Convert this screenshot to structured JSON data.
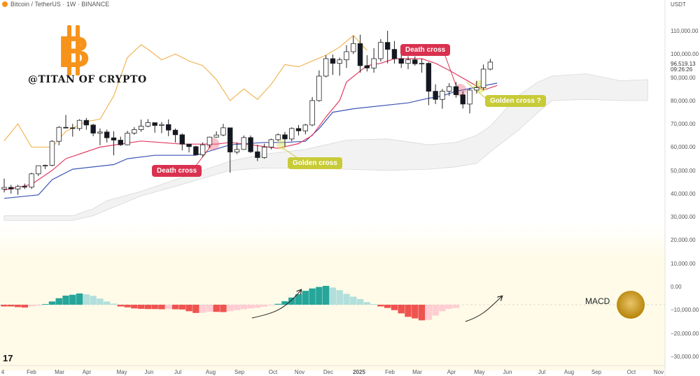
{
  "header": {
    "symbol": "Bitcoin / TetherUS · 1W · BINANCE",
    "currency": "USDT"
  },
  "brand": {
    "logo_letter": "B",
    "handle": "@TITAN OF CRYPTO"
  },
  "annotations": {
    "death_cross_1": "Death cross",
    "golden_cross_1": "Golden cross",
    "death_cross_2": "Death cross",
    "golden_cross_2": "Golden cross ?"
  },
  "macd_label": "MACD",
  "tv_logo": "17",
  "price_now": "96,519.13",
  "countdown": "09:26:26",
  "colors": {
    "bull": "#ffffff",
    "bear": "#131722",
    "tenkan": "#e23a62",
    "kijun": "#3d55b8",
    "chikou": "#f0b04a",
    "cloud": "#e7e7e7",
    "macd_pos_strong": "#26a69a",
    "macd_pos_weak": "#b2dfdb",
    "macd_neg_strong": "#ef5350",
    "macd_neg_weak": "#ffcdd2"
  },
  "chart_data": {
    "type": "candlestick",
    "price_axis_ticks": [
      "110,000.00",
      "100,000.00",
      "90,000.00",
      "80,000.00",
      "70,000.00",
      "60,000.00",
      "50,000.00",
      "40,000.00",
      "30,000.00",
      "20,000.00",
      "10,000.00",
      "0.00",
      "−10,000.00",
      "−20,000.00",
      "−30,000.00"
    ],
    "time_axis_ticks": [
      "4",
      "Feb",
      "Mar",
      "Apr",
      "May",
      "Jun",
      "Jul",
      "Aug",
      "Sep",
      "Oct",
      "Nov",
      "Dec",
      "2025",
      "Feb",
      "Mar",
      "Apr",
      "May",
      "Jun",
      "Jul",
      "Aug",
      "Sep",
      "Oct",
      "Nov"
    ],
    "candles": [
      {
        "o": 42000,
        "c": 42700,
        "h": 46500,
        "l": 40500
      },
      {
        "o": 42700,
        "c": 42000,
        "h": 43800,
        "l": 40000
      },
      {
        "o": 42000,
        "c": 43100,
        "h": 43800,
        "l": 39500
      },
      {
        "o": 43100,
        "c": 42800,
        "h": 44300,
        "l": 42000
      },
      {
        "o": 42800,
        "c": 48500,
        "h": 49000,
        "l": 42000
      },
      {
        "o": 48500,
        "c": 52000,
        "h": 52200,
        "l": 47600
      },
      {
        "o": 52000,
        "c": 52200,
        "h": 52500,
        "l": 50600
      },
      {
        "o": 52200,
        "c": 62500,
        "h": 63000,
        "l": 51800
      },
      {
        "o": 62500,
        "c": 68500,
        "h": 69000,
        "l": 60800
      },
      {
        "o": 68500,
        "c": 68300,
        "h": 73800,
        "l": 68000
      },
      {
        "o": 68300,
        "c": 68000,
        "h": 70000,
        "l": 64500
      },
      {
        "o": 68000,
        "c": 71500,
        "h": 72000,
        "l": 67000
      },
      {
        "o": 71500,
        "c": 69500,
        "h": 72500,
        "l": 67500
      },
      {
        "o": 69500,
        "c": 66000,
        "h": 70000,
        "l": 64700
      },
      {
        "o": 66000,
        "c": 66500,
        "h": 68000,
        "l": 60800
      },
      {
        "o": 66500,
        "c": 64000,
        "h": 67500,
        "l": 62000
      },
      {
        "o": 64000,
        "c": 63000,
        "h": 66800,
        "l": 56500
      },
      {
        "o": 63000,
        "c": 61000,
        "h": 64500,
        "l": 60500
      },
      {
        "o": 61000,
        "c": 66000,
        "h": 67000,
        "l": 60800
      },
      {
        "o": 66000,
        "c": 67500,
        "h": 68600,
        "l": 65300
      },
      {
        "o": 67500,
        "c": 69000,
        "h": 71800,
        "l": 66600
      },
      {
        "o": 69000,
        "c": 70500,
        "h": 72000,
        "l": 68500
      },
      {
        "o": 70500,
        "c": 69300,
        "h": 70600,
        "l": 66200
      },
      {
        "o": 69300,
        "c": 69700,
        "h": 70800,
        "l": 66000
      },
      {
        "o": 69700,
        "c": 67300,
        "h": 71900,
        "l": 64700
      },
      {
        "o": 67300,
        "c": 65300,
        "h": 68000,
        "l": 62000
      },
      {
        "o": 65300,
        "c": 61300,
        "h": 65900,
        "l": 58600
      },
      {
        "o": 61300,
        "c": 60200,
        "h": 61300,
        "l": 57700
      },
      {
        "o": 60200,
        "c": 56700,
        "h": 60600,
        "l": 56500
      },
      {
        "o": 56700,
        "c": 61000,
        "h": 62000,
        "l": 55700
      },
      {
        "o": 61000,
        "c": 64300,
        "h": 64500,
        "l": 59800
      },
      {
        "o": 64300,
        "c": 65200,
        "h": 66800,
        "l": 64000
      },
      {
        "o": 65200,
        "c": 68300,
        "h": 70000,
        "l": 64700
      },
      {
        "o": 68300,
        "c": 57900,
        "h": 68400,
        "l": 49000
      },
      {
        "o": 57900,
        "c": 59000,
        "h": 62000,
        "l": 57000
      },
      {
        "o": 59000,
        "c": 64100,
        "h": 65000,
        "l": 58800
      },
      {
        "o": 64100,
        "c": 58000,
        "h": 65000,
        "l": 57500
      },
      {
        "o": 58000,
        "c": 55500,
        "h": 61000,
        "l": 54000
      },
      {
        "o": 55500,
        "c": 60000,
        "h": 61500,
        "l": 55000
      },
      {
        "o": 60000,
        "c": 63200,
        "h": 63600,
        "l": 59000
      },
      {
        "o": 63200,
        "c": 65300,
        "h": 65900,
        "l": 62500
      },
      {
        "o": 65300,
        "c": 63500,
        "h": 66500,
        "l": 60000
      },
      {
        "o": 63500,
        "c": 68000,
        "h": 68500,
        "l": 62500
      },
      {
        "o": 68000,
        "c": 67000,
        "h": 69500,
        "l": 65000
      },
      {
        "o": 67000,
        "c": 69500,
        "h": 70000,
        "l": 65500
      },
      {
        "o": 69500,
        "c": 80000,
        "h": 81500,
        "l": 69000
      },
      {
        "o": 80000,
        "c": 90500,
        "h": 93000,
        "l": 79500
      },
      {
        "o": 90500,
        "c": 98000,
        "h": 99500,
        "l": 90000
      },
      {
        "o": 98000,
        "c": 96000,
        "h": 99800,
        "l": 91000
      },
      {
        "o": 96000,
        "c": 97500,
        "h": 98500,
        "l": 90700
      },
      {
        "o": 97500,
        "c": 101000,
        "h": 103800,
        "l": 94000
      },
      {
        "o": 101000,
        "c": 104500,
        "h": 107800,
        "l": 100000
      },
      {
        "o": 104500,
        "c": 95000,
        "h": 108300,
        "l": 92000
      },
      {
        "o": 95000,
        "c": 94000,
        "h": 99500,
        "l": 92500
      },
      {
        "o": 94000,
        "c": 98000,
        "h": 102500,
        "l": 92000
      },
      {
        "o": 98000,
        "c": 105000,
        "h": 106400,
        "l": 96800
      },
      {
        "o": 105000,
        "c": 102000,
        "h": 110000,
        "l": 96000
      },
      {
        "o": 102000,
        "c": 98000,
        "h": 105600,
        "l": 95900
      },
      {
        "o": 98000,
        "c": 96000,
        "h": 100000,
        "l": 94000
      },
      {
        "o": 96000,
        "c": 97500,
        "h": 99000,
        "l": 93500
      },
      {
        "o": 97500,
        "c": 95800,
        "h": 99000,
        "l": 95000
      },
      {
        "o": 95800,
        "c": 96000,
        "h": 98000,
        "l": 92000
      },
      {
        "o": 96000,
        "c": 84000,
        "h": 96500,
        "l": 78000
      },
      {
        "o": 84000,
        "c": 80500,
        "h": 87000,
        "l": 78500
      },
      {
        "o": 80500,
        "c": 84000,
        "h": 85000,
        "l": 76500
      },
      {
        "o": 84000,
        "c": 86000,
        "h": 87500,
        "l": 82000
      },
      {
        "o": 86000,
        "c": 82500,
        "h": 88000,
        "l": 81200
      },
      {
        "o": 82500,
        "c": 78500,
        "h": 84000,
        "l": 76600
      },
      {
        "o": 78500,
        "c": 84500,
        "h": 85500,
        "l": 74500
      },
      {
        "o": 84500,
        "c": 85500,
        "h": 88500,
        "l": 83000
      },
      {
        "o": 85500,
        "c": 93500,
        "h": 95500,
        "l": 84500
      },
      {
        "o": 93500,
        "c": 96519,
        "h": 97900,
        "l": 93000
      }
    ],
    "tenkan": [
      [
        0,
        41500
      ],
      [
        4,
        44000
      ],
      [
        7,
        50000
      ],
      [
        9,
        55000
      ],
      [
        14,
        60000
      ],
      [
        20,
        62600
      ],
      [
        26,
        61300
      ],
      [
        31,
        61300
      ],
      [
        33,
        62000
      ],
      [
        36,
        61000
      ],
      [
        40,
        59500
      ],
      [
        43,
        61500
      ],
      [
        45,
        65000
      ],
      [
        47,
        73000
      ],
      [
        49,
        80000
      ],
      [
        50,
        88000
      ],
      [
        53,
        95000
      ],
      [
        55,
        96000
      ],
      [
        57,
        98000
      ],
      [
        61,
        98000
      ],
      [
        63,
        96000
      ],
      [
        65,
        93000
      ],
      [
        68,
        88000
      ],
      [
        70,
        84500
      ],
      [
        72,
        86500
      ]
    ],
    "kijun": [
      [
        0,
        38000
      ],
      [
        5,
        39500
      ],
      [
        7,
        46000
      ],
      [
        10,
        50500
      ],
      [
        16,
        52500
      ],
      [
        18,
        55000
      ],
      [
        22,
        56500
      ],
      [
        28,
        56500
      ],
      [
        33,
        61000
      ],
      [
        38,
        62000
      ],
      [
        41,
        62000
      ],
      [
        44,
        62500
      ],
      [
        46,
        68000
      ],
      [
        48,
        75000
      ],
      [
        51,
        76500
      ],
      [
        59,
        79000
      ],
      [
        62,
        81000
      ],
      [
        64,
        82000
      ],
      [
        66,
        84000
      ],
      [
        72,
        87500
      ]
    ],
    "chikou": [
      [
        0,
        62700
      ],
      [
        2,
        70000
      ],
      [
        4,
        60000
      ],
      [
        7,
        60000
      ],
      [
        9,
        66800
      ],
      [
        12,
        71000
      ],
      [
        14,
        72000
      ],
      [
        16,
        82000
      ],
      [
        18,
        98500
      ],
      [
        20,
        104000
      ],
      [
        21,
        102000
      ],
      [
        23,
        97500
      ],
      [
        25,
        100000
      ],
      [
        27,
        97000
      ],
      [
        29,
        95000
      ],
      [
        31,
        89000
      ],
      [
        33,
        80000
      ],
      [
        35,
        85000
      ],
      [
        37,
        80500
      ],
      [
        39,
        87000
      ],
      [
        41,
        95500
      ],
      [
        43,
        94500
      ],
      [
        45,
        97000
      ],
      [
        47,
        99500
      ],
      [
        49,
        103000
      ],
      [
        51,
        108000
      ],
      [
        53,
        101500
      ]
    ],
    "cloud": {
      "upper": [
        [
          0,
          30500
        ],
        [
          10,
          30500
        ],
        [
          13,
          33500
        ],
        [
          15,
          37000
        ],
        [
          20,
          41000
        ],
        [
          26,
          47000
        ],
        [
          33,
          54000
        ],
        [
          38,
          57000
        ],
        [
          44,
          59000
        ],
        [
          50,
          63000
        ],
        [
          56,
          63500
        ],
        [
          62,
          61000
        ],
        [
          66,
          62000
        ],
        [
          69,
          65000
        ],
        [
          71,
          69000
        ],
        [
          75,
          82000
        ],
        [
          78,
          88000
        ],
        [
          80,
          90500
        ],
        [
          85,
          91500
        ],
        [
          90,
          88500
        ],
        [
          94,
          89000
        ]
      ],
      "lower": [
        [
          0,
          28500
        ],
        [
          10,
          28500
        ],
        [
          13,
          30500
        ],
        [
          15,
          33000
        ],
        [
          20,
          39000
        ],
        [
          26,
          44000
        ],
        [
          33,
          50000
        ],
        [
          38,
          51000
        ],
        [
          44,
          51000
        ],
        [
          50,
          50500
        ],
        [
          56,
          50000
        ],
        [
          62,
          50500
        ],
        [
          66,
          51500
        ],
        [
          69,
          53000
        ],
        [
          71,
          58000
        ],
        [
          75,
          67000
        ],
        [
          78,
          75000
        ],
        [
          80,
          80000
        ],
        [
          85,
          80500
        ],
        [
          90,
          80000
        ],
        [
          94,
          80000
        ]
      ]
    },
    "macd_hist": [
      -800,
      -800,
      -1100,
      -1300,
      -800,
      -400,
      300,
      1500,
      3000,
      4200,
      4600,
      5200,
      4800,
      4100,
      2800,
      1500,
      500,
      -800,
      -1200,
      -1700,
      -1900,
      -2000,
      -2000,
      -2100,
      -2000,
      -2100,
      -2200,
      -3000,
      -3800,
      -3700,
      -3200,
      -3300,
      -3400,
      -3000,
      -2500,
      -2100,
      -1700,
      -1400,
      -900,
      -300,
      400,
      1600,
      3300,
      4800,
      6400,
      7500,
      8200,
      8700,
      7900,
      6700,
      5000,
      3700,
      2600,
      1200,
      300,
      -800,
      -1500,
      -2500,
      -4000,
      -5600,
      -6300,
      -7200,
      -7000,
      -5000,
      -3000,
      -1900,
      -1500
    ]
  }
}
